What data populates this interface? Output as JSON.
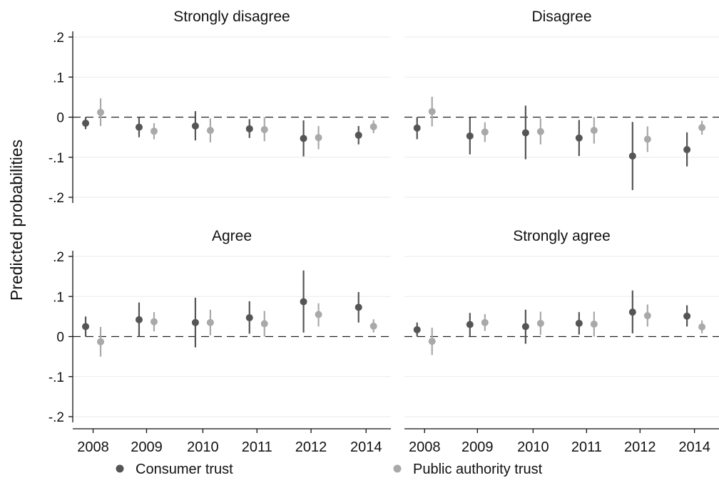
{
  "chart_data": {
    "type": "scatter",
    "ylabel": "Predicted probabilities",
    "categories": [
      "2008",
      "2009",
      "2010",
      "2011",
      "2012",
      "2014"
    ],
    "ylim": [
      -0.2,
      0.2
    ],
    "yticks": [
      {
        "value": 0.2,
        "label": ".2"
      },
      {
        "value": 0.1,
        "label": ".1"
      },
      {
        "value": 0,
        "label": "0"
      },
      {
        "value": -0.1,
        "label": "-.1"
      },
      {
        "value": -0.2,
        "label": "-.2"
      }
    ],
    "reference_line": 0,
    "grid": true,
    "legend_position": "bottom",
    "series_names": [
      "Consumer trust",
      "Public authority trust"
    ],
    "series_colors": [
      "#555555",
      "#a9a9a9"
    ],
    "panels": [
      {
        "title": "Strongly disagree",
        "series": [
          {
            "name": "Consumer trust",
            "values": [
              -0.015,
              -0.025,
              -0.022,
              -0.029,
              -0.053,
              -0.045
            ],
            "ci_low": [
              -0.03,
              -0.05,
              -0.058,
              -0.052,
              -0.098,
              -0.068
            ],
            "ci_high": [
              0.0,
              0.0,
              0.015,
              -0.005,
              -0.008,
              -0.022
            ]
          },
          {
            "name": "Public authority trust",
            "values": [
              0.012,
              -0.035,
              -0.033,
              -0.031,
              -0.051,
              -0.024
            ],
            "ci_low": [
              -0.022,
              -0.055,
              -0.063,
              -0.06,
              -0.08,
              -0.04
            ],
            "ci_high": [
              0.047,
              -0.015,
              -0.003,
              0.0,
              -0.022,
              -0.008
            ]
          }
        ]
      },
      {
        "title": "Disagree",
        "series": [
          {
            "name": "Consumer trust",
            "values": [
              -0.027,
              -0.047,
              -0.039,
              -0.052,
              -0.097,
              -0.081
            ],
            "ci_low": [
              -0.055,
              -0.093,
              -0.105,
              -0.097,
              -0.182,
              -0.123
            ],
            "ci_high": [
              0.0,
              0.0,
              0.029,
              -0.007,
              -0.012,
              -0.038
            ]
          },
          {
            "name": "Public authority trust",
            "values": [
              0.014,
              -0.037,
              -0.036,
              -0.033,
              -0.055,
              -0.026
            ],
            "ci_low": [
              -0.023,
              -0.062,
              -0.068,
              -0.066,
              -0.087,
              -0.044
            ],
            "ci_high": [
              0.051,
              -0.013,
              -0.003,
              0.0,
              -0.023,
              -0.009
            ]
          }
        ]
      },
      {
        "title": "Agree",
        "series": [
          {
            "name": "Consumer trust",
            "values": [
              0.025,
              0.042,
              0.035,
              0.047,
              0.087,
              0.073
            ],
            "ci_low": [
              0.0,
              0.0,
              -0.027,
              0.007,
              0.01,
              0.035
            ],
            "ci_high": [
              0.05,
              0.085,
              0.097,
              0.088,
              0.165,
              0.111
            ]
          },
          {
            "name": "Public authority trust",
            "values": [
              -0.013,
              0.037,
              0.035,
              0.032,
              0.055,
              0.026
            ],
            "ci_low": [
              -0.05,
              0.013,
              0.003,
              0.0,
              0.025,
              0.01
            ],
            "ci_high": [
              0.024,
              0.061,
              0.067,
              0.064,
              0.083,
              0.043
            ]
          }
        ]
      },
      {
        "title": "Strongly agree",
        "series": [
          {
            "name": "Consumer trust",
            "values": [
              0.017,
              0.03,
              0.025,
              0.033,
              0.061,
              0.051
            ],
            "ci_low": [
              0.0,
              0.0,
              -0.018,
              0.005,
              0.008,
              0.025
            ],
            "ci_high": [
              0.035,
              0.059,
              0.067,
              0.061,
              0.115,
              0.078
            ]
          },
          {
            "name": "Public authority trust",
            "values": [
              -0.012,
              0.035,
              0.033,
              0.031,
              0.052,
              0.024
            ],
            "ci_low": [
              -0.046,
              0.014,
              0.004,
              0.0,
              0.025,
              0.008
            ],
            "ci_high": [
              0.022,
              0.056,
              0.062,
              0.062,
              0.08,
              0.04
            ]
          }
        ]
      }
    ]
  }
}
